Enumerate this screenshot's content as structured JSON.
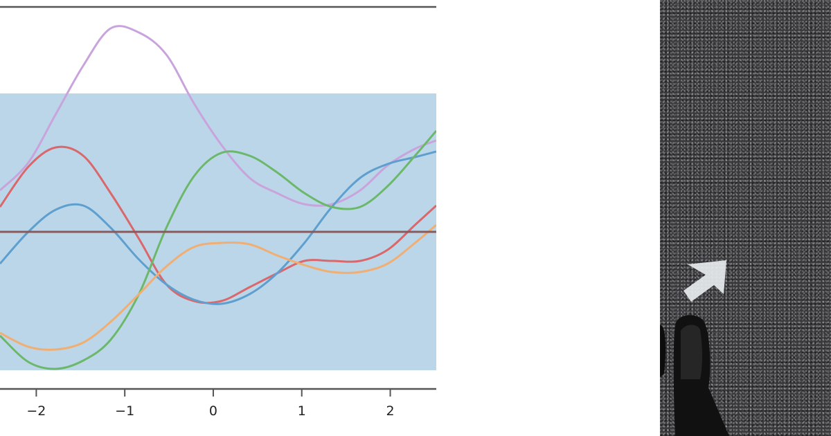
{
  "chart_data": {
    "type": "line",
    "title": "",
    "xlabel": "",
    "ylabel": "",
    "xlim": [
      -2.41,
      2.52
    ],
    "ylim": [
      -1.135,
      1.625
    ],
    "xticks": [
      "−2",
      "−1",
      "0",
      "1",
      "2"
    ],
    "xtick_values": [
      -2,
      -1,
      0,
      1,
      2
    ],
    "yticks": [],
    "grid": false,
    "shaded_band": {
      "ymin": -1,
      "ymax": 1,
      "color": "#bbd6e8"
    },
    "hline": {
      "y": 0,
      "color": "#8a5a5a"
    },
    "x": [
      -2.41,
      -2.09,
      -1.78,
      -1.47,
      -1.16,
      -0.84,
      -0.53,
      -0.22,
      0.09,
      0.41,
      0.72,
      1.03,
      1.34,
      1.66,
      1.97,
      2.28,
      2.52
    ],
    "series": [
      {
        "color": "#c9a3dc",
        "values": [
          0.3,
          0.5,
          0.85,
          1.2,
          1.47,
          1.44,
          1.28,
          0.93,
          0.63,
          0.39,
          0.28,
          0.2,
          0.2,
          0.3,
          0.48,
          0.6,
          0.66
        ]
      },
      {
        "color": "#d9676b",
        "values": [
          0.18,
          0.47,
          0.61,
          0.55,
          0.28,
          -0.05,
          -0.38,
          -0.5,
          -0.5,
          -0.4,
          -0.3,
          -0.21,
          -0.21,
          -0.21,
          -0.13,
          0.05,
          0.19
        ]
      },
      {
        "color": "#5e9fcf",
        "values": [
          -0.23,
          0.0,
          0.16,
          0.19,
          0.03,
          -0.2,
          -0.38,
          -0.49,
          -0.52,
          -0.45,
          -0.3,
          -0.08,
          0.18,
          0.39,
          0.49,
          0.54,
          0.58
        ]
      },
      {
        "color": "#6cb86a",
        "values": [
          -0.75,
          -0.94,
          -0.99,
          -0.93,
          -0.78,
          -0.45,
          0.03,
          0.4,
          0.57,
          0.55,
          0.43,
          0.28,
          0.18,
          0.18,
          0.33,
          0.55,
          0.73
        ]
      },
      {
        "color": "#f0ae72",
        "values": [
          -0.73,
          -0.83,
          -0.85,
          -0.8,
          -0.65,
          -0.45,
          -0.25,
          -0.11,
          -0.08,
          -0.09,
          -0.17,
          -0.24,
          -0.29,
          -0.29,
          -0.23,
          -0.08,
          0.05
        ]
      }
    ]
  },
  "photo": {
    "icon": "arrow-up-right-icon",
    "arrow_color": "#e8ecee"
  }
}
